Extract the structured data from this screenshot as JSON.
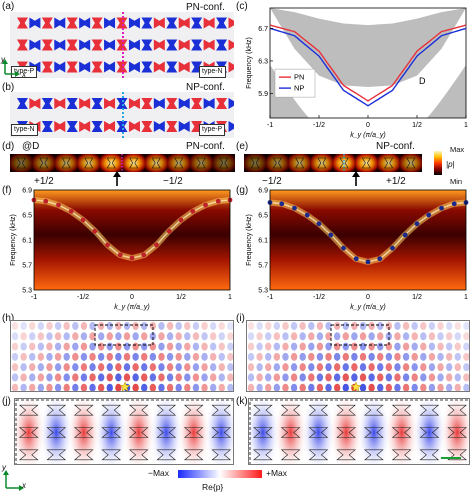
{
  "panels": {
    "a": {
      "label": "(a)",
      "conf": "PN-conf.",
      "left_tag": "type-P",
      "right_tag": "type-N"
    },
    "b": {
      "label": "(b)",
      "conf": "NP-conf.",
      "left_tag": "type-N",
      "right_tag": "type-P"
    },
    "c": {
      "label": "(c)"
    },
    "d": {
      "label": "(d)",
      "marker": "@D",
      "conf": "PN-conf.",
      "left_half": "+1/2",
      "right_half": "−1/2"
    },
    "e": {
      "label": "(e)",
      "conf": "NP-conf.",
      "left_half": "−1/2",
      "right_half": "+1/2",
      "cbar_max": "Max",
      "cbar_min": "Min",
      "cbar_label": "|p|"
    },
    "f": {
      "label": "(f)"
    },
    "g": {
      "label": "(g)"
    },
    "h": {
      "label": "(h)"
    },
    "i": {
      "label": "(i)"
    },
    "j": {
      "label": "(j)"
    },
    "k": {
      "label": "(k)"
    }
  },
  "axes": {
    "x": "x",
    "y": "y"
  },
  "bottom_cbar": {
    "min": "−Max",
    "max": "+Max",
    "label": "Re{p}"
  },
  "chart_data": [
    {
      "id": "c",
      "type": "line",
      "xlabel": "k_y (π/a_y)",
      "ylabel": "Frequency (kHz)",
      "xticks": [
        "-1",
        "-1/2",
        "0",
        "1/2",
        "1"
      ],
      "yticks": [
        "5.9",
        "6.3",
        "6.7"
      ],
      "xlim": [
        -1,
        1
      ],
      "ylim": [
        5.6,
        6.95
      ],
      "x": [
        -1,
        -0.75,
        -0.5,
        -0.25,
        0,
        0.25,
        0.5,
        0.75,
        1
      ],
      "series": [
        {
          "name": "PN",
          "color": "#e8303a",
          "values": [
            6.74,
            6.66,
            6.42,
            6.0,
            5.81,
            6.0,
            6.42,
            6.66,
            6.74
          ]
        },
        {
          "name": "NP",
          "color": "#1b2fd6",
          "values": [
            6.7,
            6.61,
            6.36,
            5.94,
            5.75,
            5.94,
            6.36,
            6.61,
            6.7
          ]
        }
      ],
      "annotations": [
        "D'",
        "D"
      ],
      "bulk_upper": [
        6.95,
        6.9,
        6.82,
        6.76,
        6.74,
        6.76,
        6.82,
        6.9,
        6.95
      ],
      "bulk_lower": [
        6.95,
        6.45,
        6.12,
        6.0,
        5.98,
        6.0,
        6.12,
        6.45,
        6.95
      ]
    },
    {
      "id": "f",
      "type": "heatmap",
      "xlabel": "k_y (π/a_y)",
      "ylabel": "Frequency (kHz)",
      "xticks": [
        "-1",
        "-1/2",
        "0",
        "1/2",
        "1"
      ],
      "yticks": [
        "5.3",
        "5.7",
        "6.1",
        "6.5",
        "6.9"
      ],
      "xlim": [
        -1,
        1
      ],
      "ylim": [
        5.3,
        6.9
      ],
      "overlay_color": "#c0202a",
      "x": [
        -1,
        -0.88,
        -0.75,
        -0.62,
        -0.5,
        -0.38,
        -0.25,
        -0.12,
        0,
        0.12,
        0.25,
        0.38,
        0.5,
        0.62,
        0.75,
        0.88,
        1
      ],
      "values": [
        6.74,
        6.72,
        6.66,
        6.56,
        6.42,
        6.24,
        6.02,
        5.86,
        5.81,
        5.86,
        6.02,
        6.24,
        6.42,
        6.56,
        6.66,
        6.72,
        6.74
      ]
    },
    {
      "id": "g",
      "type": "heatmap",
      "xlabel": "k_y (π/a_y)",
      "ylabel": "Frequency (kHz)",
      "xticks": [
        "-1",
        "-1/2",
        "0",
        "1/2",
        "1"
      ],
      "yticks": [
        "5.3",
        "5.7",
        "6.1",
        "6.5",
        "6.9"
      ],
      "xlim": [
        -1,
        1
      ],
      "ylim": [
        5.3,
        6.9
      ],
      "overlay_color": "#1b2a8c",
      "x": [
        -1,
        -0.88,
        -0.75,
        -0.62,
        -0.5,
        -0.38,
        -0.25,
        -0.12,
        0,
        0.12,
        0.25,
        0.38,
        0.5,
        0.62,
        0.75,
        0.88,
        1
      ],
      "values": [
        6.7,
        6.68,
        6.61,
        6.5,
        6.36,
        6.18,
        5.97,
        5.8,
        5.75,
        5.8,
        5.97,
        6.18,
        6.36,
        6.5,
        6.61,
        6.68,
        6.7
      ]
    }
  ],
  "colors": {
    "red": "#e8303a",
    "blue": "#1b2fd6",
    "magenta": "#e020c0",
    "cyan": "#2aa8e0"
  }
}
